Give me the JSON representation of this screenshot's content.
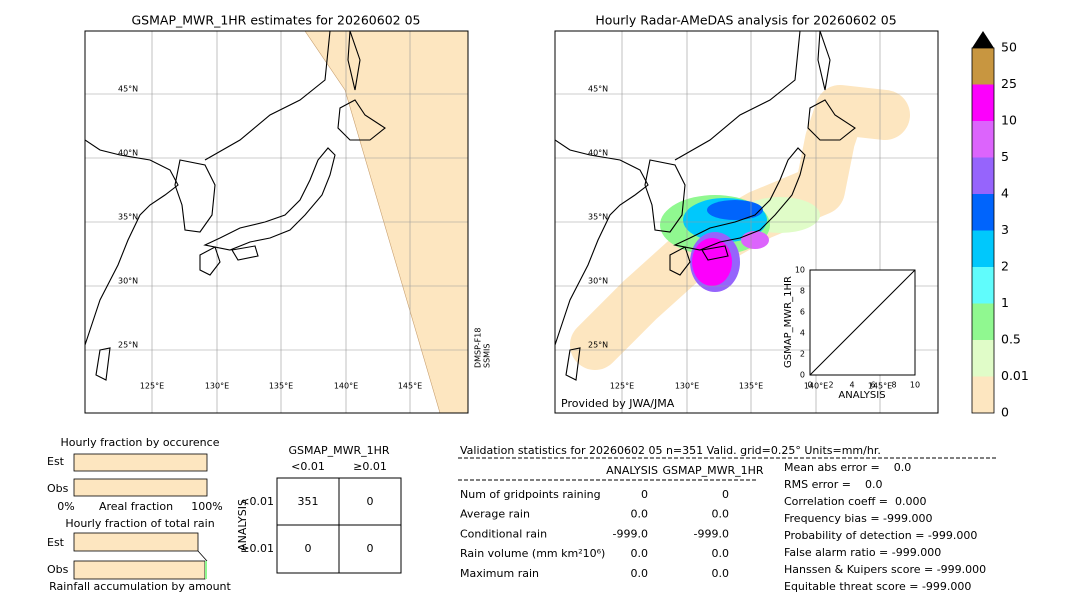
{
  "left_map": {
    "title": "GSMAP_MWR_1HR estimates for 20260602 05",
    "lat_labels": [
      "45°N",
      "40°N",
      "35°N",
      "30°N",
      "25°N"
    ],
    "lon_labels": [
      "125°E",
      "130°E",
      "135°E",
      "140°E",
      "145°E"
    ],
    "satellite": [
      "DMSP-F18",
      "SSMIS"
    ]
  },
  "right_map": {
    "title": "Hourly Radar-AMeDAS analysis for 20260602 05",
    "lat_labels": [
      "45°N",
      "40°N",
      "35°N",
      "30°N",
      "25°N"
    ],
    "lon_labels": [
      "125°E",
      "130°E",
      "135°E",
      "140°E",
      "145°E"
    ],
    "credit": "Provided by JWA/JMA"
  },
  "scatter": {
    "ylabel": "GSMAP_MWR_1HR",
    "xlabel": "ANALYSIS",
    "xticks": [
      "0",
      "2",
      "4",
      "6",
      "8",
      "10"
    ],
    "yticks": [
      "0",
      "2",
      "4",
      "6",
      "8",
      "10"
    ]
  },
  "colorbar": {
    "labels": [
      "0",
      "0.01",
      "0.5",
      "1",
      "2",
      "3",
      "4",
      "5",
      "10",
      "25",
      "50"
    ],
    "colors": [
      "#fde6c0",
      "#e0fcc8",
      "#90f890",
      "#60fcfc",
      "#00c8fc",
      "#0064fc",
      "#9664fc",
      "#dc64fc",
      "#fc00fc",
      "#c89640"
    ]
  },
  "occurrence": {
    "title": "Hourly fraction by occurence",
    "rows": [
      "Est",
      "Obs"
    ],
    "axis": [
      "0%",
      "Areal fraction",
      "100%"
    ]
  },
  "total_rain": {
    "title": "Hourly fraction of total rain",
    "rows": [
      "Est",
      "Obs"
    ],
    "footer": "Rainfall accumulation by amount"
  },
  "contingency": {
    "title": "GSMAP_MWR_1HR",
    "columns": [
      "<0.01",
      "≥0.01"
    ],
    "row_title": "ANALYSIS",
    "rows": [
      "<0.01",
      "≥0.01"
    ],
    "cells": [
      [
        "351",
        "0"
      ],
      [
        "0",
        "0"
      ]
    ]
  },
  "validation": {
    "header": "Validation statistics for 20260602 05  n=351 Valid. grid=0.25° Units=mm/hr.",
    "columns": [
      "ANALYSIS",
      "GSMAP_MWR_1HR"
    ],
    "rows": [
      {
        "name": "Num of gridpoints raining",
        "analysis": "0",
        "gsmap": "0"
      },
      {
        "name": "Average rain",
        "analysis": "0.0",
        "gsmap": "0.0"
      },
      {
        "name": "Conditional rain",
        "analysis": "-999.0",
        "gsmap": "-999.0"
      },
      {
        "name": "Rain volume (mm km²10⁶)",
        "analysis": "0.0",
        "gsmap": "0.0"
      },
      {
        "name": "Maximum rain",
        "analysis": "0.0",
        "gsmap": "0.0"
      }
    ],
    "scores": [
      "Mean abs error =    0.0",
      "RMS error =    0.0",
      "Correlation coeff =  0.000",
      "Frequency bias = -999.000",
      "Probability of detection = -999.000",
      "False alarm ratio = -999.000",
      "Hanssen & Kuipers score = -999.000",
      "Equitable threat score = -999.000"
    ]
  }
}
